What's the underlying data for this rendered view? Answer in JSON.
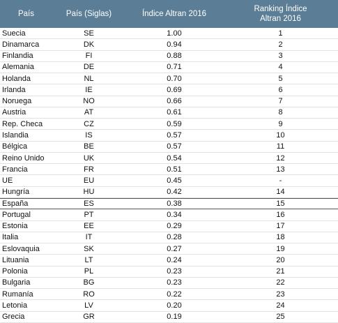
{
  "table": {
    "header": [
      "País",
      "País (Siglas)",
      "Índice Altran 2016",
      "Ranking Índice Altran 2016"
    ],
    "rows": [
      [
        "Suecia",
        "SE",
        "1.00",
        "1"
      ],
      [
        "Dinamarca",
        "DK",
        "0.94",
        "2"
      ],
      [
        "Finlandia",
        "FI",
        "0.88",
        "3"
      ],
      [
        "Alemania",
        "DE",
        "0.71",
        "4"
      ],
      [
        "Holanda",
        "NL",
        "0.70",
        "5"
      ],
      [
        "Irlanda",
        "IE",
        "0.69",
        "6"
      ],
      [
        "Noruega",
        "NO",
        "0.66",
        "7"
      ],
      [
        "Austria",
        "AT",
        "0.61",
        "8"
      ],
      [
        "Rep. Checa",
        "CZ",
        "0.59",
        "9"
      ],
      [
        "Islandia",
        "IS",
        "0.57",
        "10"
      ],
      [
        "Bélgica",
        "BE",
        "0.57",
        "11"
      ],
      [
        "Reino Unido",
        "UK",
        "0.54",
        "12"
      ],
      [
        "Francia",
        "FR",
        "0.51",
        "13"
      ],
      [
        "UE",
        "EU",
        "0.45",
        "-"
      ],
      [
        "Hungría",
        "HU",
        "0.42",
        "14"
      ],
      [
        "España",
        "ES",
        "0.38",
        "15"
      ],
      [
        "Portugal",
        "PT",
        "0.34",
        "16"
      ],
      [
        "Estonia",
        "EE",
        "0.29",
        "17"
      ],
      [
        "Italia",
        "IT",
        "0.28",
        "18"
      ],
      [
        "Eslovaquia",
        "SK",
        "0.27",
        "19"
      ],
      [
        "Lituania",
        "LT",
        "0.24",
        "20"
      ],
      [
        "Polonia",
        "PL",
        "0.23",
        "21"
      ],
      [
        "Bulgaria",
        "BG",
        "0.23",
        "22"
      ],
      [
        "Rumanía",
        "RO",
        "0.22",
        "23"
      ],
      [
        "Letonia",
        "LV",
        "0.20",
        "24"
      ],
      [
        "Grecia",
        "GR",
        "0.19",
        "25"
      ]
    ]
  }
}
